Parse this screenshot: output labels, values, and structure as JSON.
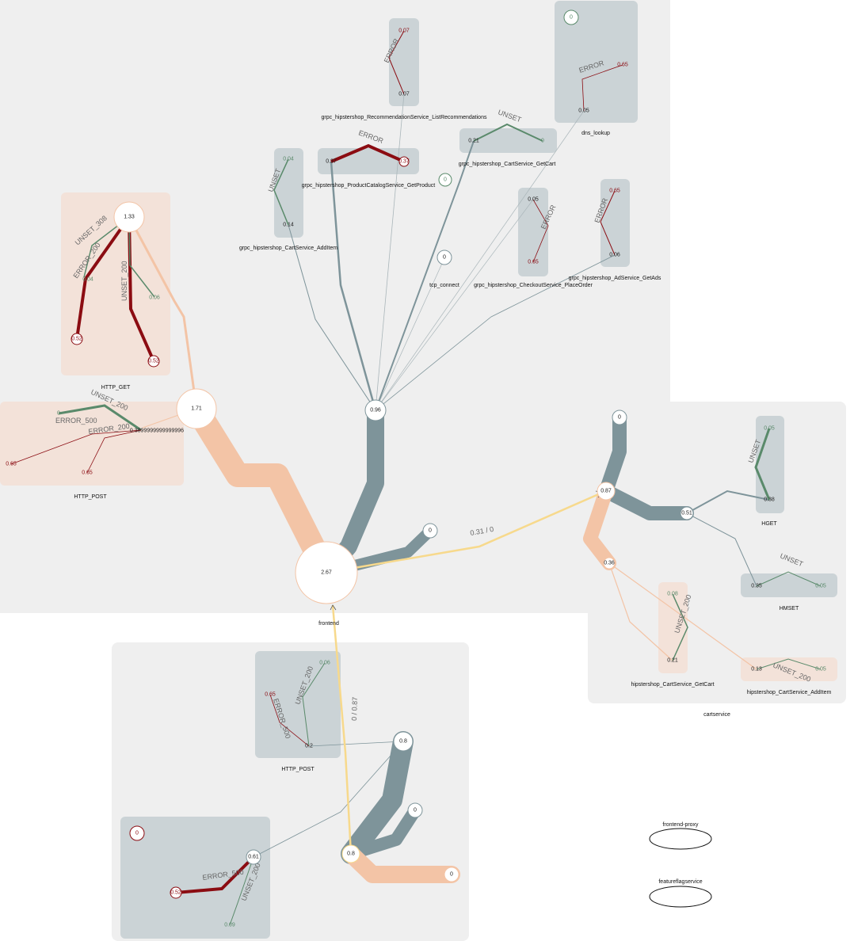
{
  "colors": {
    "panel": "#efefef",
    "gray_box": "#cbd3d6",
    "peach_box": "#f3e2d9",
    "steel": "#7e949a",
    "peach": "#f3c4a6",
    "yellow": "#f7d98c",
    "error": "#8b0c12",
    "unset": "#5a8a6b",
    "node_border_gray": "#7e949a",
    "node_border_orange": "#f3c4a6"
  },
  "nodes": {
    "frontend": {
      "label": "frontend",
      "value": "2.67"
    },
    "fe_http": "1.71",
    "fe_get": "1.33",
    "fe_grpc": "0.96",
    "fe_small": "0",
    "cart_root": "0.87",
    "cart_top": "0",
    "cart_redis": "0.51",
    "cart_span": "0.36",
    "proxy_a": "0.8",
    "proxy_b": "0.8",
    "proxy_c": "0",
    "proxy_d": "0",
    "proxy_e": "0.61"
  },
  "groups": {
    "http_get": {
      "label": "HTTP_GET",
      "p308": "UNSET_308",
      "p200": "ERROR_200",
      "p200b": "UNSET_200",
      "v1": "0.52",
      "v2": "0.52",
      "v3": "0.04",
      "v4": "0.06"
    },
    "http_post": {
      "label": "HTTP_POST",
      "p1": "UNSET_200",
      "p2": "ERROR_500",
      "p3": "ERROR_200",
      "v1": "0",
      "v2": "0.3899999999999996",
      "v3": "0.65",
      "v4": "0.65"
    },
    "list_recs": {
      "label": "grpc_hipstershop_RecommendationService_ListRecommendations",
      "path": "ERROR",
      "v1": "0.07",
      "v2": "0.07"
    },
    "get_product": {
      "label": "grpc_hipstershop_ProductCatalogService_GetProduct",
      "path": "ERROR",
      "v1": "0.37",
      "v2": "0.37"
    },
    "add_item": {
      "label": "grpc_hipstershop_CartService_AddItem",
      "path": "UNSET",
      "v1": "0.04",
      "v2": "0.14"
    },
    "get_cart": {
      "label": "grpc_hipstershop_CartService_GetCart",
      "path": "UNSET",
      "v1": "0.21",
      "v2": "0"
    },
    "dns": {
      "label": "dns_lookup",
      "path": "ERROR",
      "v0": "0",
      "v1": "0.65",
      "v2": "0.05"
    },
    "tcp": {
      "label": "tcp_connect",
      "v": "0",
      "v_side": "0"
    },
    "place_order": {
      "label": "grpc_hipstershop_CheckoutService_PlaceOrder",
      "path": "ERROR",
      "v1": "0.05",
      "v2": "0.65"
    },
    "get_ads": {
      "label": "grpc_hipstershop_AdService_GetAds",
      "path": "ERROR",
      "v1": "0.65",
      "v2": "0.06"
    },
    "hget": {
      "label": "HGET",
      "path": "UNSET",
      "v1": "0.05",
      "v2": "0.38"
    },
    "hmset": {
      "label": "HMSET",
      "path": "UNSET",
      "v1": "0.35",
      "v2": "0.05"
    },
    "cart_getcart": {
      "label": "hipstershop_CartService_GetCart",
      "path": "UNSET_200",
      "v1": "0.08",
      "v2": "0.21"
    },
    "cart_additem": {
      "label": "hipstershop_CartService_AddItem",
      "path": "UNSET_200",
      "v1": "0.13",
      "v2": "0.05"
    },
    "proxy_post": {
      "label": "HTTP_POST",
      "p1": "UNSET_200",
      "p2": "ERROR_500",
      "v1": "0.65",
      "v2": "0.06",
      "v3": "0.2"
    },
    "proxy_get": {
      "v0": "0",
      "p1": "ERROR_500",
      "p2": "UNSET_200",
      "v1": "0.52",
      "v2": "0.09"
    }
  },
  "services": {
    "frontend": "frontend",
    "cartservice": "cartservice",
    "frontend_proxy": "frontend-proxy",
    "featureflagservice": "featureflagservice"
  },
  "edges": {
    "fe_to_cart": "0.31 / 0",
    "proxy_to_fe": "0 / 0.87"
  }
}
